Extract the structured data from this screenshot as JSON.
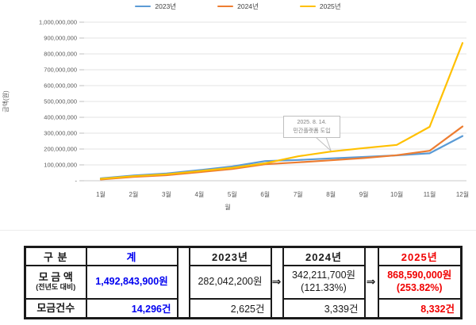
{
  "chart_data": {
    "type": "line",
    "title": "",
    "x": [
      "1월",
      "2월",
      "3월",
      "4월",
      "5월",
      "6월",
      "7월",
      "8월",
      "9월",
      "10월",
      "11월",
      "12월"
    ],
    "series": [
      {
        "name": "2023년",
        "color": "#5B9BD5",
        "values": [
          15000000,
          33000000,
          46000000,
          67000000,
          90000000,
          124000000,
          131000000,
          141000000,
          150000000,
          160000000,
          173000000,
          282042200
        ]
      },
      {
        "name": "2024년",
        "color": "#ED7D31",
        "values": [
          8000000,
          24000000,
          35000000,
          54000000,
          74000000,
          104000000,
          116000000,
          129000000,
          143000000,
          161000000,
          189000000,
          342211700
        ]
      },
      {
        "name": "2025년",
        "color": "#FFC000",
        "values": [
          12000000,
          29000000,
          41000000,
          61000000,
          82000000,
          110000000,
          154000000,
          184000000,
          206000000,
          226000000,
          340000000,
          868590000
        ]
      }
    ],
    "xlabel": "월",
    "ylabel": "금액(원)",
    "ylim": [
      0,
      1000000000
    ],
    "y_ticks": [
      "-",
      "100,000,000",
      "200,000,000",
      "300,000,000",
      "400,000,000",
      "500,000,000",
      "600,000,000",
      "700,000,000",
      "800,000,000",
      "900,000,000",
      "1,000,000,000"
    ],
    "grid": true,
    "legend_position": "top",
    "annotation": {
      "line1": "2025. 8. 14.",
      "line2": "민간플랫폼 도입",
      "target_month": "8월",
      "target_series": "2025년"
    }
  },
  "table": {
    "headers": {
      "category": "구 분",
      "total": "계",
      "y2023": "2023년",
      "y2024": "2024년",
      "y2025": "2025년"
    },
    "arrow": "⇒",
    "rows": {
      "amount": {
        "label": "모 금 액",
        "sublabel": "(전년도 대비)",
        "total": "1,492,843,900원",
        "y2023": "282,042,200원",
        "y2024": "342,211,700원",
        "y2024_pct": "(121.33%)",
        "y2025": "868,590,000원",
        "y2025_pct": "(253.82%)"
      },
      "count": {
        "label": "모금건수",
        "total": "14,296건",
        "y2023": "2,625건",
        "y2024": "3,339건",
        "y2025": "8,332건"
      }
    },
    "colors": {
      "total_text": "#0000f0",
      "y2025_text": "#f00000",
      "border": "#1a1a1a"
    }
  }
}
